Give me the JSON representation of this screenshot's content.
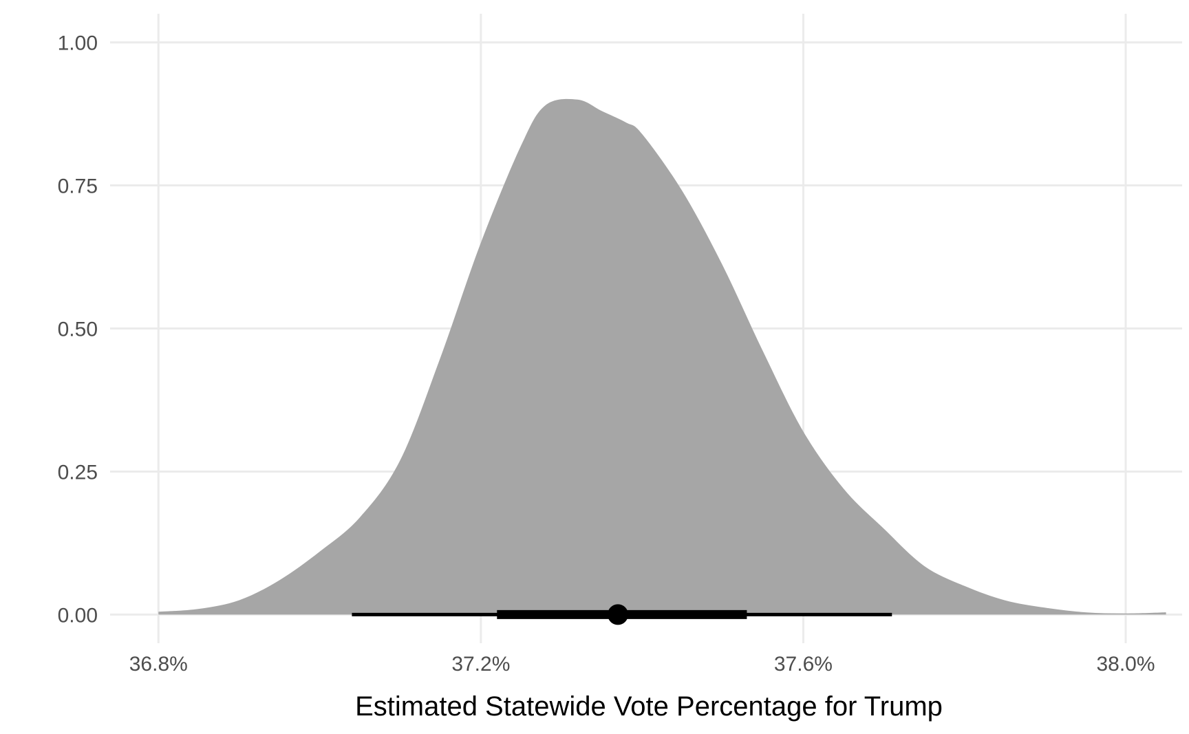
{
  "chart_data": {
    "type": "area",
    "title": "",
    "xlabel": "Estimated Statewide Vote Percentage for Trump",
    "ylabel": "",
    "xlim": [
      36.74,
      38.07
    ],
    "ylim": [
      -0.05,
      1.05
    ],
    "x_ticks": [
      36.8,
      37.2,
      37.6,
      38.0
    ],
    "x_tick_labels": [
      "36.8%",
      "37.2%",
      "37.6%",
      "38.0%"
    ],
    "y_ticks": [
      0,
      0.25,
      0.5,
      0.75,
      1.0
    ],
    "y_tick_labels": [
      "0.00",
      "0.25",
      "0.50",
      "0.75",
      "1.00"
    ],
    "grid": true,
    "legend": "none",
    "series": [
      {
        "type": "density",
        "x": [
          36.8,
          36.85,
          36.9,
          36.95,
          37.0,
          37.05,
          37.1,
          37.15,
          37.2,
          37.25,
          37.28,
          37.32,
          37.35,
          37.38,
          37.4,
          37.45,
          37.5,
          37.55,
          37.6,
          37.65,
          37.7,
          37.75,
          37.8,
          37.85,
          37.9,
          37.95,
          38.0,
          38.05
        ],
        "values": [
          0.005,
          0.01,
          0.025,
          0.06,
          0.11,
          0.17,
          0.27,
          0.45,
          0.65,
          0.82,
          0.89,
          0.9,
          0.88,
          0.86,
          0.84,
          0.74,
          0.61,
          0.46,
          0.32,
          0.22,
          0.15,
          0.085,
          0.05,
          0.025,
          0.012,
          0.004,
          0.002,
          0.004
        ],
        "color": "#a6a6a6"
      }
    ],
    "point_interval": {
      "point": 37.37,
      "inner": [
        37.22,
        37.53
      ],
      "outer": [
        37.04,
        37.71
      ],
      "color": "#000000"
    },
    "colors": {
      "fill": "#a6a6a6",
      "grid": "#ebebeb",
      "interval": "#000000",
      "tick_text": "#4d4d4d",
      "axis_title": "#000000"
    }
  }
}
